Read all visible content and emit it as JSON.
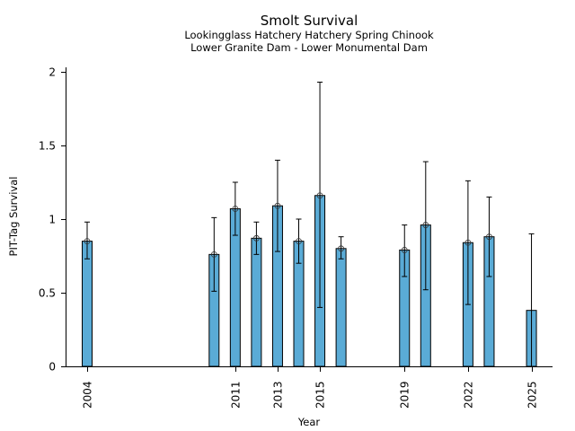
{
  "chart_data": {
    "type": "bar",
    "title": "Smolt Survival",
    "subtitle_lines": [
      "Lookingglass Hatchery Hatchery Spring Chinook",
      "Lower Granite Dam - Lower Monumental Dam"
    ],
    "xlabel": "Year",
    "ylabel": "PIT-Tag Survival",
    "ylim": [
      0,
      2.05
    ],
    "xlim": [
      2003,
      2026
    ],
    "yticks": [
      0,
      0.5,
      1,
      1.5,
      2
    ],
    "ytick_labels": [
      "0",
      "0.5",
      "1",
      "1.5",
      "2"
    ],
    "xticks": [
      2004,
      2011,
      2013,
      2015,
      2019,
      2022,
      2025
    ],
    "xtick_labels": [
      "2004",
      "2011",
      "2013",
      "2015",
      "2019",
      "2022",
      "2025"
    ],
    "bar_color": "#5aabd6",
    "grid": false,
    "legend": null,
    "points": [
      {
        "year": 2004,
        "value": 0.85,
        "lower": 0.73,
        "upper": 0.98,
        "marker": true
      },
      {
        "year": 2010,
        "value": 0.76,
        "lower": 0.51,
        "upper": 1.01,
        "marker": true
      },
      {
        "year": 2011,
        "value": 1.07,
        "lower": 0.89,
        "upper": 1.25,
        "marker": true
      },
      {
        "year": 2012,
        "value": 0.87,
        "lower": 0.76,
        "upper": 0.98,
        "marker": true
      },
      {
        "year": 2013,
        "value": 1.09,
        "lower": 0.78,
        "upper": 1.4,
        "marker": true
      },
      {
        "year": 2014,
        "value": 0.85,
        "lower": 0.7,
        "upper": 1.0,
        "marker": true
      },
      {
        "year": 2015,
        "value": 1.16,
        "lower": 0.4,
        "upper": 1.93,
        "marker": true
      },
      {
        "year": 2016,
        "value": 0.8,
        "lower": 0.73,
        "upper": 0.88,
        "marker": true
      },
      {
        "year": 2019,
        "value": 0.79,
        "lower": 0.61,
        "upper": 0.96,
        "marker": true
      },
      {
        "year": 2020,
        "value": 0.96,
        "lower": 0.52,
        "upper": 1.39,
        "marker": true
      },
      {
        "year": 2022,
        "value": 0.84,
        "lower": 0.42,
        "upper": 1.26,
        "marker": true
      },
      {
        "year": 2023,
        "value": 0.88,
        "lower": 0.61,
        "upper": 1.15,
        "marker": true
      },
      {
        "year": 2025,
        "value": 0.38,
        "lower": 0.0,
        "upper": 0.9,
        "marker": false
      }
    ]
  }
}
